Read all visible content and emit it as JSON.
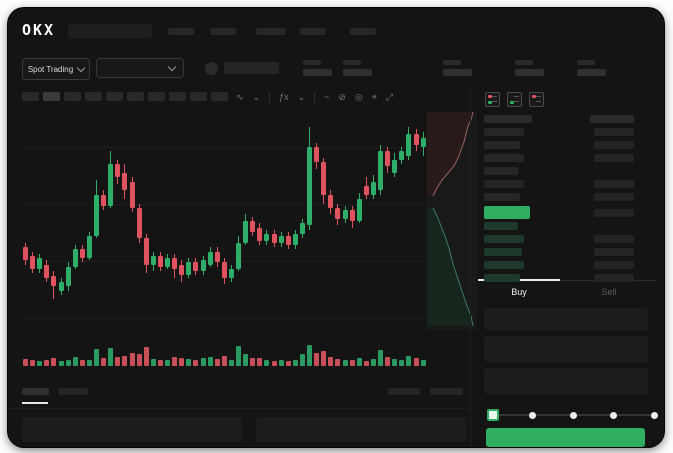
{
  "brand": {
    "logo": "OKX"
  },
  "ui": {
    "chevron": "⌄"
  },
  "nav": {
    "top_placeholders": [
      26,
      26,
      30,
      26,
      26
    ],
    "search_placeholder": true
  },
  "header": {
    "market_type": "Spot Trading",
    "pair_dropdown_value": "",
    "stat_placeholder_count": 5
  },
  "toolbar": {
    "timeframe_placeholder_count": 10,
    "icons": [
      "∿",
      "⌄",
      "|",
      "ƒx",
      "⌄",
      "|",
      "~",
      "⊘",
      "◎",
      "⌖",
      "⤢"
    ]
  },
  "trade": {
    "buy_label": "Buy",
    "sell_label": "Sell",
    "field_count": 3,
    "slider_stops": [
      0,
      0.25,
      0.5,
      0.75,
      1
    ],
    "slider_value": 0
  },
  "orderbook": {
    "view_icons": [
      "book-both-icon",
      "book-bids-icon",
      "book-asks-icon"
    ],
    "asks": [
      {
        "lw": 40,
        "right": true
      },
      {
        "lw": 36,
        "right": true
      },
      {
        "lw": 40,
        "right": true
      },
      {
        "lw": 34,
        "right": false
      },
      {
        "lw": 40,
        "right": true
      },
      {
        "lw": 36,
        "right": true
      }
    ],
    "last_price_highlight": {
      "width": 46,
      "color": "#2fae62"
    },
    "bids": [
      {
        "lw": 34,
        "right": false
      },
      {
        "lw": 40,
        "right": true
      },
      {
        "lw": 38,
        "right": true
      },
      {
        "lw": 40,
        "right": true
      },
      {
        "lw": 36,
        "right": true
      }
    ]
  },
  "colors": {
    "up_green": "#2eae69",
    "down_red": "#df535f",
    "buy_button": "#2fae62",
    "bid_row_bg": "#1e3a2a",
    "panel_bg": "#1c1c1c",
    "placeholder_bar": "#292929",
    "depth_ask_fill": "#2a1b1b",
    "depth_ask_line": "#9a6060",
    "depth_bid_fill": "#16261d",
    "depth_bid_line": "#3c7a68"
  },
  "chart_data": {
    "type": "candlestick",
    "title": "",
    "xlabel": "",
    "ylabel": "",
    "ylim": [
      0,
      100
    ],
    "note": "no axis tick labels visible in screenshot; OHLC normalized 0-100",
    "grid": true,
    "candles": [
      [
        38,
        40,
        30,
        32
      ],
      [
        34,
        36,
        26,
        28
      ],
      [
        28,
        35,
        26,
        33
      ],
      [
        30,
        32,
        22,
        24
      ],
      [
        25,
        27,
        14,
        20
      ],
      [
        18,
        24,
        16,
        22
      ],
      [
        20,
        31,
        18,
        29
      ],
      [
        29,
        39,
        28,
        37
      ],
      [
        37,
        39,
        31,
        33
      ],
      [
        33,
        45,
        32,
        43
      ],
      [
        43,
        69,
        42,
        62
      ],
      [
        62,
        64,
        55,
        57
      ],
      [
        57,
        82,
        56,
        76
      ],
      [
        76,
        78,
        67,
        70
      ],
      [
        72,
        76,
        60,
        64
      ],
      [
        68,
        70,
        54,
        56
      ],
      [
        56,
        58,
        40,
        42
      ],
      [
        42,
        44,
        26,
        30
      ],
      [
        30,
        36,
        27,
        34
      ],
      [
        34,
        36,
        27,
        29
      ],
      [
        29,
        35,
        28,
        33
      ],
      [
        33,
        35,
        24,
        28
      ],
      [
        30,
        32,
        22,
        25
      ],
      [
        25,
        33,
        24,
        31
      ],
      [
        31,
        33,
        25,
        27
      ],
      [
        27,
        34,
        25,
        32
      ],
      [
        30,
        38,
        29,
        36
      ],
      [
        36,
        38,
        29,
        31
      ],
      [
        31,
        33,
        21,
        24
      ],
      [
        24,
        30,
        22,
        28
      ],
      [
        28,
        43,
        27,
        40
      ],
      [
        40,
        53,
        39,
        50
      ],
      [
        50,
        52,
        43,
        45
      ],
      [
        47,
        49,
        39,
        41
      ],
      [
        41,
        46,
        39,
        44
      ],
      [
        44,
        46,
        38,
        40
      ],
      [
        40,
        45,
        38,
        43
      ],
      [
        43,
        45,
        37,
        39
      ],
      [
        39,
        46,
        37,
        44
      ],
      [
        44,
        51,
        42,
        49
      ],
      [
        48,
        93,
        46,
        84
      ],
      [
        84,
        86,
        74,
        77
      ],
      [
        77,
        79,
        58,
        62
      ],
      [
        62,
        64,
        53,
        56
      ],
      [
        56,
        58,
        48,
        51
      ],
      [
        51,
        57,
        49,
        55
      ],
      [
        55,
        57,
        47,
        50
      ],
      [
        50,
        63,
        49,
        60
      ],
      [
        66,
        70,
        60,
        62
      ],
      [
        62,
        71,
        60,
        68
      ],
      [
        64,
        85,
        62,
        82
      ],
      [
        82,
        84,
        72,
        75
      ],
      [
        72,
        81,
        70,
        78
      ],
      [
        78,
        84,
        76,
        82
      ],
      [
        80,
        93,
        78,
        90
      ],
      [
        90,
        92,
        82,
        85
      ],
      [
        84,
        91,
        80,
        88
      ]
    ],
    "volumes": [
      35,
      30,
      22,
      28,
      40,
      25,
      30,
      45,
      28,
      30,
      80,
      38,
      85,
      45,
      50,
      60,
      55,
      90,
      35,
      30,
      28,
      45,
      40,
      35,
      30,
      38,
      45,
      35,
      50,
      30,
      95,
      55,
      40,
      38,
      30,
      25,
      28,
      24,
      30,
      55,
      100,
      60,
      70,
      45,
      35,
      30,
      28,
      40,
      25,
      35,
      75,
      45,
      35,
      30,
      50,
      40,
      28
    ],
    "depth": {
      "asks_curve": [
        [
          46,
          0
        ],
        [
          44,
          8
        ],
        [
          41,
          14
        ],
        [
          39,
          22
        ],
        [
          37,
          30
        ],
        [
          34,
          38
        ],
        [
          31,
          46
        ],
        [
          27,
          54
        ],
        [
          22,
          60
        ],
        [
          15,
          68
        ],
        [
          10,
          76
        ],
        [
          6,
          84
        ]
      ],
      "bids_curve": [
        [
          6,
          96
        ],
        [
          10,
          104
        ],
        [
          14,
          114
        ],
        [
          18,
          124
        ],
        [
          22,
          136
        ],
        [
          25,
          148
        ],
        [
          28,
          158
        ],
        [
          32,
          170
        ],
        [
          36,
          182
        ],
        [
          40,
          194
        ],
        [
          44,
          204
        ],
        [
          46,
          214
        ]
      ]
    }
  }
}
